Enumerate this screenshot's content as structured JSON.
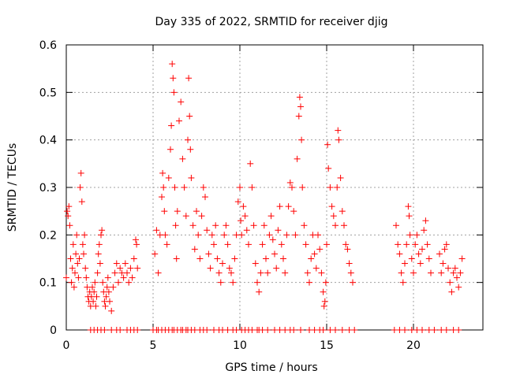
{
  "chart_data": {
    "type": "scatter",
    "title": "Day 335 of 2022, SRMTID for receiver djig",
    "xlabel": "GPS time / hours",
    "ylabel": "SRMTID / TECUs",
    "xlim": [
      0,
      24
    ],
    "ylim": [
      0,
      0.6
    ],
    "xticks": [
      0,
      5,
      10,
      15,
      20
    ],
    "yticks": [
      0,
      0.1,
      0.2,
      0.3,
      0.4,
      0.5,
      0.6
    ],
    "xtick_labels": [
      "0",
      "5",
      "10",
      "15",
      "20"
    ],
    "ytick_labels": [
      "0",
      "0.1",
      "0.2",
      "0.3",
      "0.4",
      "0.5",
      "0.6"
    ],
    "grid": true,
    "marker": "+",
    "marker_color": "#ff0000",
    "series": [
      {
        "name": "SRMTID",
        "points": [
          [
            0.0,
            0.11
          ],
          [
            0.05,
            0.25
          ],
          [
            0.1,
            0.24
          ],
          [
            0.15,
            0.26
          ],
          [
            0.2,
            0.22
          ],
          [
            0.25,
            0.15
          ],
          [
            0.3,
            0.1
          ],
          [
            0.35,
            0.13
          ],
          [
            0.4,
            0.18
          ],
          [
            0.45,
            0.09
          ],
          [
            0.5,
            0.12
          ],
          [
            0.55,
            0.16
          ],
          [
            0.6,
            0.2
          ],
          [
            0.65,
            0.14
          ],
          [
            0.7,
            0.11
          ],
          [
            0.75,
            0.15
          ],
          [
            0.8,
            0.3
          ],
          [
            0.85,
            0.33
          ],
          [
            0.9,
            0.27
          ],
          [
            0.95,
            0.18
          ],
          [
            1.0,
            0.16
          ],
          [
            1.05,
            0.2
          ],
          [
            1.1,
            0.13
          ],
          [
            1.15,
            0.11
          ],
          [
            1.2,
            0.09
          ],
          [
            1.25,
            0.07
          ],
          [
            1.3,
            0.06
          ],
          [
            1.35,
            0.08
          ],
          [
            1.4,
            0.05
          ],
          [
            1.45,
            0.07
          ],
          [
            1.5,
            0.09
          ],
          [
            1.55,
            0.06
          ],
          [
            1.6,
            0.08
          ],
          [
            1.65,
            0.1
          ],
          [
            1.7,
            0.05
          ],
          [
            1.75,
            0.07
          ],
          [
            1.8,
            0.12
          ],
          [
            1.85,
            0.16
          ],
          [
            1.9,
            0.18
          ],
          [
            1.95,
            0.14
          ],
          [
            2.0,
            0.2
          ],
          [
            2.05,
            0.21
          ],
          [
            2.1,
            0.1
          ],
          [
            2.15,
            0.08
          ],
          [
            2.2,
            0.06
          ],
          [
            2.25,
            0.05
          ],
          [
            2.3,
            0.07
          ],
          [
            2.35,
            0.09
          ],
          [
            2.4,
            0.11
          ],
          [
            2.45,
            0.08
          ],
          [
            2.5,
            0.06
          ],
          [
            2.6,
            0.04
          ],
          [
            2.7,
            0.09
          ],
          [
            2.8,
            0.12
          ],
          [
            2.9,
            0.14
          ],
          [
            3.0,
            0.1
          ],
          [
            3.1,
            0.13
          ],
          [
            3.2,
            0.12
          ],
          [
            3.3,
            0.11
          ],
          [
            3.4,
            0.14
          ],
          [
            3.5,
            0.12
          ],
          [
            3.6,
            0.1
          ],
          [
            3.7,
            0.13
          ],
          [
            3.8,
            0.11
          ],
          [
            3.9,
            0.15
          ],
          [
            4.0,
            0.19
          ],
          [
            4.05,
            0.18
          ],
          [
            4.1,
            0.13
          ],
          [
            5.1,
            0.16
          ],
          [
            5.2,
            0.21
          ],
          [
            5.3,
            0.12
          ],
          [
            5.4,
            0.2
          ],
          [
            5.5,
            0.28
          ],
          [
            5.55,
            0.33
          ],
          [
            5.6,
            0.3
          ],
          [
            5.65,
            0.25
          ],
          [
            5.7,
            0.2
          ],
          [
            5.8,
            0.18
          ],
          [
            5.9,
            0.32
          ],
          [
            6.0,
            0.38
          ],
          [
            6.05,
            0.43
          ],
          [
            6.1,
            0.56
          ],
          [
            6.15,
            0.53
          ],
          [
            6.2,
            0.5
          ],
          [
            6.25,
            0.3
          ],
          [
            6.3,
            0.22
          ],
          [
            6.35,
            0.15
          ],
          [
            6.4,
            0.25
          ],
          [
            6.5,
            0.44
          ],
          [
            6.6,
            0.48
          ],
          [
            6.7,
            0.36
          ],
          [
            6.8,
            0.3
          ],
          [
            6.9,
            0.24
          ],
          [
            7.0,
            0.4
          ],
          [
            7.05,
            0.53
          ],
          [
            7.1,
            0.45
          ],
          [
            7.15,
            0.38
          ],
          [
            7.2,
            0.32
          ],
          [
            7.3,
            0.22
          ],
          [
            7.4,
            0.17
          ],
          [
            7.5,
            0.25
          ],
          [
            7.6,
            0.2
          ],
          [
            7.7,
            0.15
          ],
          [
            7.8,
            0.24
          ],
          [
            7.9,
            0.3
          ],
          [
            8.0,
            0.28
          ],
          [
            8.1,
            0.21
          ],
          [
            8.2,
            0.16
          ],
          [
            8.3,
            0.13
          ],
          [
            8.4,
            0.2
          ],
          [
            8.5,
            0.18
          ],
          [
            8.6,
            0.22
          ],
          [
            8.7,
            0.15
          ],
          [
            8.8,
            0.12
          ],
          [
            8.9,
            0.1
          ],
          [
            9.0,
            0.14
          ],
          [
            9.1,
            0.2
          ],
          [
            9.2,
            0.22
          ],
          [
            9.3,
            0.18
          ],
          [
            9.4,
            0.13
          ],
          [
            9.5,
            0.12
          ],
          [
            9.6,
            0.1
          ],
          [
            9.7,
            0.15
          ],
          [
            9.8,
            0.2
          ],
          [
            9.9,
            0.27
          ],
          [
            10.0,
            0.3
          ],
          [
            10.05,
            0.23
          ],
          [
            10.1,
            0.2
          ],
          [
            10.2,
            0.26
          ],
          [
            10.3,
            0.24
          ],
          [
            10.4,
            0.21
          ],
          [
            10.5,
            0.18
          ],
          [
            10.6,
            0.35
          ],
          [
            10.7,
            0.3
          ],
          [
            10.8,
            0.22
          ],
          [
            10.9,
            0.14
          ],
          [
            11.0,
            0.1
          ],
          [
            11.1,
            0.08
          ],
          [
            11.2,
            0.12
          ],
          [
            11.3,
            0.18
          ],
          [
            11.4,
            0.22
          ],
          [
            11.5,
            0.15
          ],
          [
            11.6,
            0.12
          ],
          [
            11.7,
            0.2
          ],
          [
            11.8,
            0.24
          ],
          [
            11.9,
            0.19
          ],
          [
            12.0,
            0.16
          ],
          [
            12.1,
            0.13
          ],
          [
            12.2,
            0.21
          ],
          [
            12.3,
            0.26
          ],
          [
            12.4,
            0.18
          ],
          [
            12.5,
            0.15
          ],
          [
            12.6,
            0.12
          ],
          [
            12.7,
            0.2
          ],
          [
            12.8,
            0.26
          ],
          [
            12.9,
            0.31
          ],
          [
            13.0,
            0.3
          ],
          [
            13.1,
            0.25
          ],
          [
            13.2,
            0.2
          ],
          [
            13.3,
            0.36
          ],
          [
            13.4,
            0.45
          ],
          [
            13.45,
            0.49
          ],
          [
            13.5,
            0.47
          ],
          [
            13.55,
            0.4
          ],
          [
            13.6,
            0.3
          ],
          [
            13.7,
            0.22
          ],
          [
            13.8,
            0.18
          ],
          [
            13.9,
            0.12
          ],
          [
            14.0,
            0.1
          ],
          [
            14.1,
            0.15
          ],
          [
            14.2,
            0.2
          ],
          [
            14.3,
            0.16
          ],
          [
            14.4,
            0.13
          ],
          [
            14.5,
            0.2
          ],
          [
            14.6,
            0.17
          ],
          [
            14.7,
            0.12
          ],
          [
            14.8,
            0.08
          ],
          [
            14.85,
            0.05
          ],
          [
            14.9,
            0.06
          ],
          [
            14.95,
            0.1
          ],
          [
            15.0,
            0.18
          ],
          [
            15.05,
            0.39
          ],
          [
            15.1,
            0.34
          ],
          [
            15.2,
            0.3
          ],
          [
            15.3,
            0.26
          ],
          [
            15.4,
            0.24
          ],
          [
            15.5,
            0.22
          ],
          [
            15.6,
            0.3
          ],
          [
            15.65,
            0.42
          ],
          [
            15.7,
            0.4
          ],
          [
            15.8,
            0.32
          ],
          [
            15.9,
            0.25
          ],
          [
            16.0,
            0.22
          ],
          [
            16.1,
            0.18
          ],
          [
            16.2,
            0.17
          ],
          [
            16.3,
            0.14
          ],
          [
            16.4,
            0.12
          ],
          [
            16.5,
            0.1
          ],
          [
            19.0,
            0.22
          ],
          [
            19.1,
            0.18
          ],
          [
            19.2,
            0.16
          ],
          [
            19.3,
            0.12
          ],
          [
            19.4,
            0.1
          ],
          [
            19.5,
            0.14
          ],
          [
            19.6,
            0.18
          ],
          [
            19.7,
            0.26
          ],
          [
            19.75,
            0.24
          ],
          [
            19.8,
            0.2
          ],
          [
            19.9,
            0.15
          ],
          [
            20.0,
            0.12
          ],
          [
            20.1,
            0.18
          ],
          [
            20.2,
            0.2
          ],
          [
            20.3,
            0.16
          ],
          [
            20.4,
            0.14
          ],
          [
            20.5,
            0.17
          ],
          [
            20.6,
            0.21
          ],
          [
            20.7,
            0.23
          ],
          [
            20.8,
            0.18
          ],
          [
            20.9,
            0.15
          ],
          [
            21.0,
            0.12
          ],
          [
            21.5,
            0.16
          ],
          [
            21.6,
            0.12
          ],
          [
            21.7,
            0.14
          ],
          [
            21.8,
            0.17
          ],
          [
            21.9,
            0.18
          ],
          [
            22.0,
            0.13
          ],
          [
            22.1,
            0.1
          ],
          [
            22.2,
            0.08
          ],
          [
            22.3,
            0.12
          ],
          [
            22.4,
            0.13
          ],
          [
            22.5,
            0.11
          ],
          [
            22.6,
            0.09
          ],
          [
            22.7,
            0.12
          ],
          [
            22.8,
            0.15
          ]
        ],
        "zero_markers": [
          1.4,
          1.6,
          1.8,
          2.0,
          2.2,
          2.6,
          2.9,
          3.1,
          3.5,
          3.7,
          3.9,
          4.1,
          5.0,
          5.2,
          5.3,
          5.5,
          5.7,
          5.9,
          6.1,
          6.2,
          6.4,
          6.6,
          6.7,
          6.9,
          7.0,
          7.2,
          7.4,
          7.7,
          7.9,
          8.1,
          8.5,
          8.8,
          9.0,
          9.3,
          9.6,
          9.8,
          10.1,
          10.3,
          10.5,
          10.7,
          11.0,
          11.1,
          11.3,
          11.6,
          12.0,
          12.3,
          12.6,
          12.9,
          13.1,
          13.5,
          14.0,
          14.3,
          14.6,
          14.8,
          15.2,
          15.5,
          15.9,
          16.3,
          16.6,
          18.9,
          19.2,
          19.5,
          19.9,
          20.2,
          20.5,
          20.9,
          21.2,
          21.6,
          21.9,
          22.3,
          22.6
        ]
      }
    ]
  }
}
